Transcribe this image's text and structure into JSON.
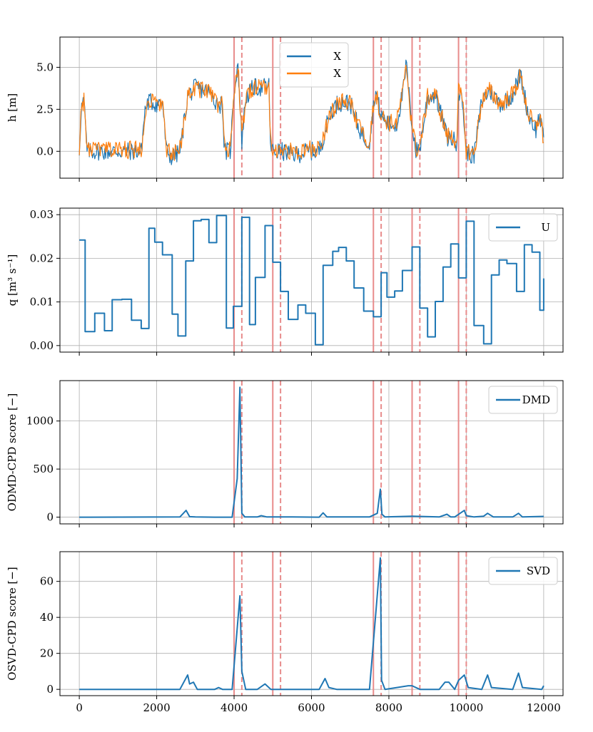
{
  "figure": {
    "shared_x": true,
    "xlim": [
      -500,
      12500
    ],
    "xticks": [
      0,
      2000,
      4000,
      6000,
      8000,
      10000,
      12000
    ],
    "xtick_labels": [
      "0",
      "2000",
      "4000",
      "6000",
      "8000",
      "10000",
      "12000"
    ]
  },
  "colors": {
    "blue": "#1f77b4",
    "orange": "#ff7f0e",
    "marker": "#e88b8b",
    "grid": "#b0b0b0"
  },
  "changepoints": {
    "true_solid": [
      4000,
      5000,
      7600,
      8600,
      9800
    ],
    "detected_dashed": [
      4200,
      5200,
      7800,
      8800,
      10000
    ]
  },
  "chart_data": [
    {
      "type": "line",
      "ylabel": "h [m]",
      "ylim": [
        -1.6,
        6.8
      ],
      "yticks": [
        0.0,
        2.5,
        5.0
      ],
      "ytick_labels": [
        "0.0",
        "2.5",
        "5.0"
      ],
      "legend": {
        "position": "top-center",
        "entries": [
          "X",
          "X"
        ]
      },
      "noise": 0.55,
      "series": [
        {
          "name": "X",
          "color": "#1f77b4",
          "x": [
            0,
            50,
            120,
            200,
            1000,
            1600,
            1700,
            1800,
            2000,
            2150,
            2250,
            2400,
            2600,
            2800,
            3000,
            3300,
            3600,
            3700,
            3750,
            3900,
            4000,
            4100,
            4200,
            4300,
            4500,
            4700,
            4900,
            4950,
            5200,
            5600,
            5900,
            6200,
            6500,
            6700,
            7000,
            7200,
            7400,
            7500,
            7650,
            7800,
            8000,
            8200,
            8400,
            8450,
            8550,
            8700,
            8800,
            9000,
            9200,
            9400,
            9500,
            9600,
            9750,
            9800,
            9900,
            10000,
            10200,
            10400,
            10600,
            10900,
            11200,
            11400,
            11600,
            11800,
            11900,
            12000
          ],
          "values": [
            0.0,
            2.6,
            3.0,
            0.0,
            0.0,
            0.0,
            2.5,
            3.0,
            2.8,
            3.0,
            0.0,
            -0.4,
            0.0,
            3.3,
            3.8,
            3.6,
            2.8,
            2.8,
            0.0,
            0.0,
            3.6,
            5.3,
            0.6,
            3.2,
            3.8,
            3.8,
            3.9,
            0.0,
            0.0,
            -0.2,
            0.0,
            0.0,
            2.4,
            2.9,
            2.9,
            1.5,
            0.7,
            0.6,
            3.6,
            2.1,
            1.6,
            1.6,
            4.0,
            5.3,
            2.5,
            0.0,
            0.2,
            3.2,
            3.4,
            1.8,
            0.8,
            0.8,
            0.5,
            3.6,
            3.0,
            0.0,
            -0.3,
            3.0,
            3.6,
            2.8,
            3.4,
            4.6,
            2.2,
            1.3,
            2.2,
            0.5
          ]
        },
        {
          "name": "X",
          "color": "#ff7f0e",
          "x": [
            0,
            50,
            120,
            200,
            1000,
            1600,
            1700,
            1800,
            2000,
            2150,
            2250,
            2400,
            2600,
            2800,
            3000,
            3300,
            3600,
            3700,
            3750,
            3900,
            4000,
            4100,
            4200,
            4300,
            4500,
            4700,
            4900,
            4950,
            5200,
            5600,
            5900,
            6200,
            6500,
            6700,
            7000,
            7200,
            7400,
            7500,
            7650,
            7800,
            8000,
            8200,
            8400,
            8450,
            8550,
            8700,
            8800,
            9000,
            9200,
            9400,
            9500,
            9600,
            9750,
            9800,
            9900,
            10000,
            10200,
            10400,
            10600,
            10900,
            11200,
            11400,
            11600,
            11800,
            11900,
            12000
          ],
          "values": [
            0.1,
            2.6,
            3.0,
            0.1,
            0.1,
            0.1,
            2.5,
            3.0,
            2.8,
            3.0,
            0.1,
            -0.3,
            0.1,
            3.3,
            3.8,
            3.6,
            2.8,
            2.8,
            0.1,
            0.1,
            3.6,
            5.2,
            0.7,
            3.2,
            3.8,
            3.8,
            3.9,
            0.1,
            0.1,
            -0.1,
            0.1,
            0.1,
            2.4,
            2.9,
            2.9,
            1.5,
            0.8,
            0.7,
            3.6,
            2.1,
            1.7,
            1.7,
            4.0,
            5.2,
            2.5,
            0.1,
            0.3,
            3.2,
            3.4,
            1.8,
            0.9,
            0.9,
            0.6,
            3.6,
            3.0,
            0.1,
            -0.2,
            3.0,
            3.6,
            2.8,
            3.4,
            4.5,
            2.2,
            1.4,
            2.2,
            0.6
          ]
        }
      ]
    },
    {
      "type": "line",
      "ylabel": "q [m³ s⁻¹]",
      "ylim": [
        -0.0015,
        0.0315
      ],
      "yticks": [
        0.0,
        0.01,
        0.02,
        0.03
      ],
      "ytick_labels": [
        "0.00",
        "0.01",
        "0.02",
        "0.03"
      ],
      "legend": {
        "position": "top-right",
        "entries": [
          "U"
        ]
      },
      "step": true,
      "series": [
        {
          "name": "U",
          "color": "#1f77b4",
          "x": [
            0,
            150,
            400,
            650,
            850,
            1100,
            1350,
            1600,
            1800,
            1950,
            2150,
            2400,
            2550,
            2750,
            2950,
            3150,
            3350,
            3550,
            3800,
            3980,
            4200,
            4400,
            4550,
            4800,
            5000,
            5200,
            5400,
            5650,
            5850,
            6100,
            6300,
            6550,
            6700,
            6900,
            7100,
            7350,
            7600,
            7800,
            7950,
            8150,
            8350,
            8600,
            8800,
            9000,
            9200,
            9400,
            9600,
            9800,
            10000,
            10200,
            10450,
            10650,
            10850,
            11050,
            11300,
            11500,
            11700,
            11900,
            12000
          ],
          "values": [
            0.0242,
            0.0032,
            0.0074,
            0.0034,
            0.0105,
            0.0106,
            0.0058,
            0.0039,
            0.0269,
            0.0237,
            0.0208,
            0.0072,
            0.0022,
            0.0194,
            0.0286,
            0.0289,
            0.0236,
            0.0298,
            0.004,
            0.009,
            0.0294,
            0.0048,
            0.0156,
            0.0275,
            0.0191,
            0.0124,
            0.006,
            0.0093,
            0.0074,
            0.0002,
            0.0184,
            0.0216,
            0.0225,
            0.0194,
            0.0132,
            0.0079,
            0.0066,
            0.0167,
            0.0111,
            0.0125,
            0.0172,
            0.0226,
            0.0086,
            0.002,
            0.0101,
            0.018,
            0.0233,
            0.0155,
            0.0285,
            0.0046,
            0.0004,
            0.0162,
            0.0196,
            0.0188,
            0.0124,
            0.0231,
            0.0214,
            0.0081,
            0.0154
          ]
        }
      ]
    },
    {
      "type": "line",
      "ylabel": "ODMD-CPD score [−]",
      "ylim": [
        -70,
        1420
      ],
      "yticks": [
        0,
        500,
        1000
      ],
      "ytick_labels": [
        "0",
        "500",
        "1000"
      ],
      "legend": {
        "position": "top-right",
        "entries": [
          "DMD"
        ]
      },
      "series": [
        {
          "name": "DMD",
          "color": "#1f77b4",
          "x": [
            0,
            2600,
            2760,
            2850,
            3000,
            3500,
            3950,
            4080,
            4150,
            4200,
            4280,
            4600,
            4700,
            4850,
            5500,
            6200,
            6300,
            6400,
            7500,
            7700,
            7780,
            7820,
            7900,
            8600,
            9300,
            9500,
            9600,
            9700,
            9950,
            10000,
            10200,
            10450,
            10550,
            10700,
            11200,
            11350,
            11450,
            12000
          ],
          "values": [
            0,
            2,
            70,
            5,
            2,
            0,
            0,
            400,
            1350,
            40,
            2,
            2,
            15,
            2,
            2,
            0,
            45,
            2,
            2,
            40,
            290,
            30,
            2,
            10,
            2,
            30,
            2,
            2,
            70,
            15,
            2,
            10,
            40,
            2,
            2,
            40,
            2,
            8
          ]
        }
      ]
    },
    {
      "type": "line",
      "ylabel": "OSVD-CPD score [−]",
      "ylim": [
        -3.5,
        76.5
      ],
      "yticks": [
        0,
        20,
        40,
        60
      ],
      "ytick_labels": [
        "0",
        "20",
        "40",
        "60"
      ],
      "legend": {
        "position": "top-right",
        "entries": [
          "SVD"
        ]
      },
      "series": [
        {
          "name": "SVD",
          "color": "#1f77b4",
          "x": [
            0,
            2600,
            2800,
            2850,
            2950,
            3050,
            3200,
            3500,
            3600,
            3700,
            3950,
            4150,
            4200,
            4300,
            4600,
            4800,
            4950,
            6200,
            6350,
            6450,
            6650,
            7500,
            7780,
            7810,
            7900,
            8500,
            8600,
            8800,
            9300,
            9450,
            9550,
            9700,
            9800,
            9950,
            10050,
            10400,
            10550,
            10650,
            11200,
            11350,
            11450,
            11950,
            12000
          ],
          "values": [
            0,
            0,
            8,
            3,
            4,
            0,
            0,
            0,
            1,
            0,
            0,
            52,
            10,
            0,
            0,
            3,
            0,
            0,
            6,
            1,
            0,
            0,
            73,
            5,
            0,
            2,
            2,
            0,
            0,
            4,
            4,
            0,
            5,
            8,
            1,
            0,
            8,
            1,
            0,
            9,
            1,
            0,
            2
          ]
        }
      ]
    }
  ]
}
